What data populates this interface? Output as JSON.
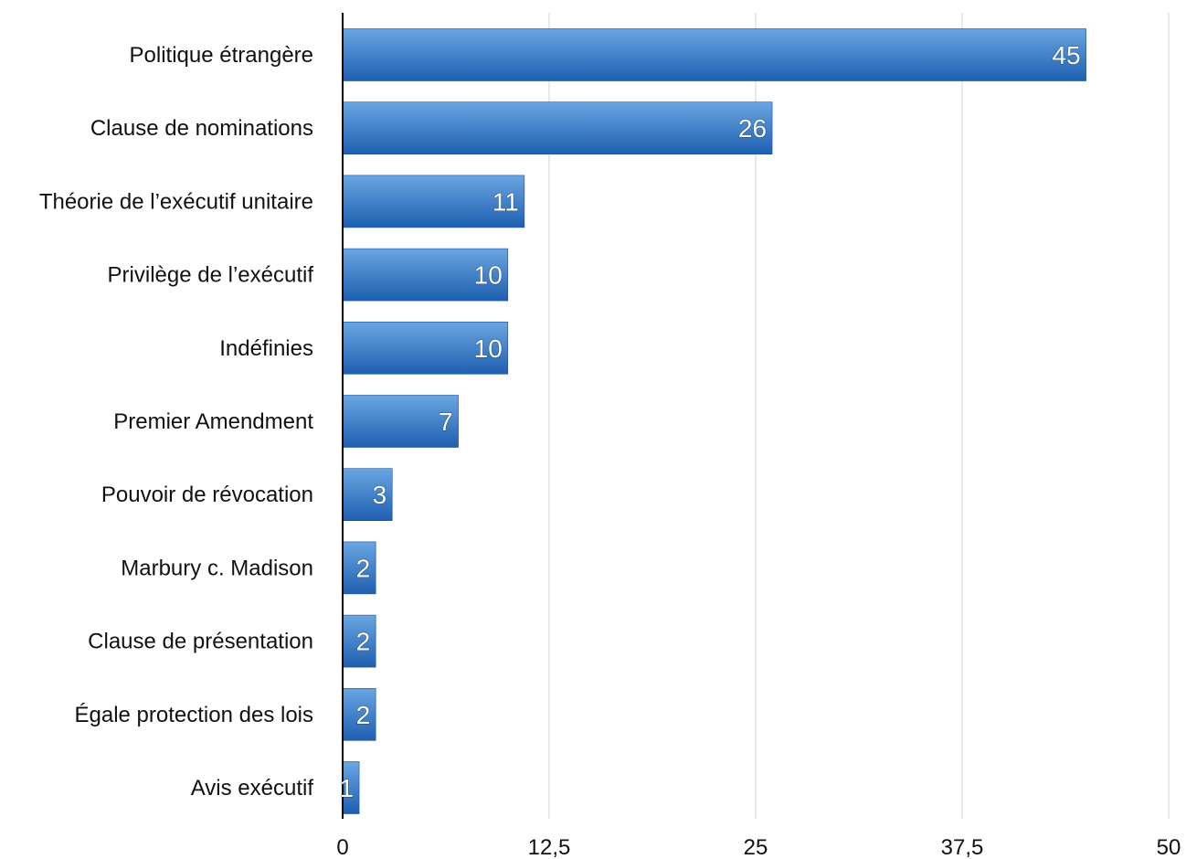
{
  "chart_data": {
    "type": "bar",
    "orientation": "horizontal",
    "categories": [
      "Politique étrangère",
      "Clause de nominations",
      "Théorie de l’exécutif unitaire",
      "Privilège de l’exécutif",
      "Indéfinies",
      "Premier Amendment",
      "Pouvoir de révocation",
      "Marbury c. Madison",
      "Clause de présentation",
      "Égale protection des lois",
      "Avis exécutif"
    ],
    "values": [
      45,
      26,
      11,
      10,
      10,
      7,
      3,
      2,
      2,
      2,
      1
    ],
    "value_labels": [
      "45",
      "26",
      "11",
      "10",
      "10",
      "7",
      "3",
      "2",
      "2",
      "2",
      "1"
    ],
    "xlim": [
      0,
      50
    ],
    "xticks": [
      0,
      12.5,
      25,
      37.5,
      50
    ],
    "xtick_labels": [
      "0",
      "12,5",
      "25",
      "37,5",
      "50"
    ],
    "title": "",
    "xlabel": "",
    "ylabel": "",
    "grid": "vertical",
    "legend": "none",
    "colors": {
      "bar_top": "#6aa6e2",
      "bar_bottom": "#1f5fb0",
      "bar_edge": "#1a4f96",
      "grid": "#d0d0d0",
      "axis": "#000000",
      "text": "#111111",
      "value_text": "#ffffff"
    }
  }
}
